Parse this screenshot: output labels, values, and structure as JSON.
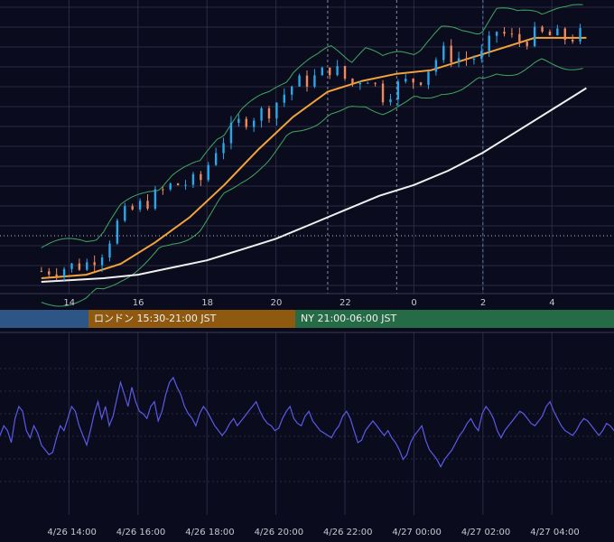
{
  "colors": {
    "background": "#0b0b1e",
    "grid": "#2a2a44",
    "candle_up": "#2aa7e8",
    "candle_down": "#f08a5d",
    "ma_short": "#f2a33a",
    "ma_long": "#f0f0f0",
    "bollinger": "#3fa85f",
    "oscillator": "#5a5ae6",
    "session_tokyo": "#2d5586",
    "session_london": "#8f5a10",
    "session_ny": "#256b45"
  },
  "sessions": [
    {
      "label": "",
      "color": "#2d5586"
    },
    {
      "label": "ロンドン 15:30-21:00 JST",
      "color": "#8f5a10"
    },
    {
      "label": "NY 21:00-06:00 JST",
      "color": "#256b45"
    }
  ],
  "chart_data": [
    {
      "type": "candlestick",
      "title": "",
      "x_ticks": [
        "14",
        "16",
        "18",
        "20",
        "22",
        "0",
        "2",
        "4"
      ],
      "series": [
        {
          "name": "",
          "kind": "candles",
          "close_path": [
            {
              "t": 13.2,
              "v": 3
            },
            {
              "t": 14.5,
              "v": 5
            },
            {
              "t": 15.0,
              "v": 9
            },
            {
              "t": 15.5,
              "v": 18
            },
            {
              "t": 16.2,
              "v": 22
            },
            {
              "t": 17.0,
              "v": 27
            },
            {
              "t": 17.8,
              "v": 28
            },
            {
              "t": 18.3,
              "v": 38
            },
            {
              "t": 19.0,
              "v": 45
            },
            {
              "t": 19.8,
              "v": 48
            },
            {
              "t": 20.5,
              "v": 55
            },
            {
              "t": 21.2,
              "v": 57
            },
            {
              "t": 21.6,
              "v": 60
            },
            {
              "t": 22.2,
              "v": 55
            },
            {
              "t": 22.6,
              "v": 58
            },
            {
              "t": 23.1,
              "v": 52
            },
            {
              "t": 23.6,
              "v": 55
            },
            {
              "t": 24.2,
              "v": 57
            },
            {
              "t": 24.8,
              "v": 64
            },
            {
              "t": 25.4,
              "v": 62
            },
            {
              "t": 26.0,
              "v": 63
            },
            {
              "t": 26.4,
              "v": 70
            },
            {
              "t": 27.0,
              "v": 67
            },
            {
              "t": 27.6,
              "v": 69
            },
            {
              "t": 28.4,
              "v": 68
            },
            {
              "t": 29.0,
              "v": 69
            }
          ]
        },
        {
          "name": "",
          "kind": "ma_short",
          "points": [
            {
              "t": 13.2,
              "v": 1
            },
            {
              "t": 14.5,
              "v": 2
            },
            {
              "t": 15.5,
              "v": 5
            },
            {
              "t": 16.5,
              "v": 11
            },
            {
              "t": 17.5,
              "v": 18
            },
            {
              "t": 18.5,
              "v": 27
            },
            {
              "t": 19.5,
              "v": 37
            },
            {
              "t": 20.5,
              "v": 46
            },
            {
              "t": 21.5,
              "v": 53
            },
            {
              "t": 22.5,
              "v": 56
            },
            {
              "t": 23.5,
              "v": 58
            },
            {
              "t": 24.5,
              "v": 59
            },
            {
              "t": 25.5,
              "v": 62
            },
            {
              "t": 26.5,
              "v": 65
            },
            {
              "t": 27.5,
              "v": 68
            },
            {
              "t": 28.5,
              "v": 68
            },
            {
              "t": 29.0,
              "v": 68
            }
          ]
        },
        {
          "name": "",
          "kind": "ma_long",
          "points": [
            {
              "t": 13.2,
              "v": 0
            },
            {
              "t": 15.0,
              "v": 1
            },
            {
              "t": 16.0,
              "v": 2
            },
            {
              "t": 17.0,
              "v": 4
            },
            {
              "t": 18.0,
              "v": 6
            },
            {
              "t": 19.0,
              "v": 9
            },
            {
              "t": 20.0,
              "v": 12
            },
            {
              "t": 21.0,
              "v": 16
            },
            {
              "t": 22.0,
              "v": 20
            },
            {
              "t": 23.0,
              "v": 24
            },
            {
              "t": 24.0,
              "v": 27
            },
            {
              "t": 25.0,
              "v": 31
            },
            {
              "t": 26.0,
              "v": 36
            },
            {
              "t": 27.0,
              "v": 42
            },
            {
              "t": 28.0,
              "v": 48
            },
            {
              "t": 29.0,
              "v": 54
            }
          ]
        }
      ],
      "bollinger_width": 6,
      "grid": true
    },
    {
      "type": "line",
      "title": "",
      "x_ticks": [
        "4/26 14:00",
        "4/26 16:00",
        "4/26 18:00",
        "4/26 20:00",
        "4/26 22:00",
        "4/27 00:00",
        "4/27 02:00",
        "4/27 04:00"
      ],
      "series": [
        {
          "name": "",
          "values": [
            48,
            52,
            50,
            45,
            55,
            60,
            58,
            50,
            47,
            52,
            49,
            44,
            42,
            40,
            41,
            47,
            52,
            50,
            55,
            60,
            58,
            52,
            48,
            44,
            50,
            57,
            62,
            55,
            60,
            52,
            56,
            63,
            70,
            65,
            60,
            68,
            62,
            58,
            57,
            55,
            60,
            62,
            54,
            58,
            65,
            70,
            72,
            68,
            65,
            60,
            57,
            55,
            52,
            57,
            60,
            58,
            55,
            52,
            50,
            48,
            50,
            53,
            55,
            52,
            54,
            56,
            58,
            60,
            62,
            58,
            55,
            53,
            52,
            50,
            51,
            55,
            58,
            60,
            55,
            53,
            52,
            56,
            58,
            54,
            52,
            50,
            49,
            48,
            47,
            50,
            52,
            56,
            58,
            55,
            50,
            45,
            46,
            50,
            52,
            54,
            52,
            50,
            48,
            50,
            47,
            45,
            42,
            38,
            40,
            45,
            48,
            50,
            52,
            46,
            42,
            40,
            38,
            35,
            38,
            40,
            42,
            45,
            48,
            50,
            53,
            55,
            52,
            50,
            57,
            60,
            58,
            55,
            50,
            47,
            50,
            52,
            54,
            56,
            58,
            57,
            55,
            53,
            52,
            54,
            56,
            60,
            62,
            58,
            55,
            52,
            50,
            49,
            48,
            50,
            53,
            55,
            54,
            52,
            50,
            48,
            50,
            53,
            52,
            50
          ]
        }
      ],
      "grid": true
    }
  ]
}
